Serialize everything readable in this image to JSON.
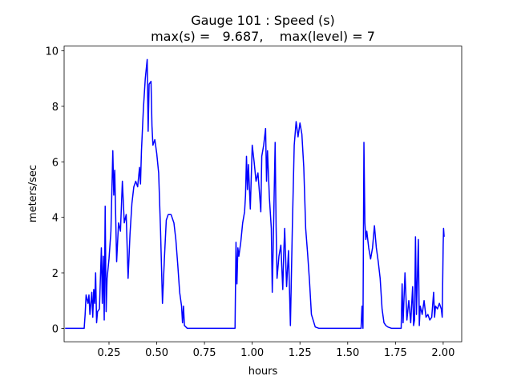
{
  "chart_data": {
    "type": "line",
    "title": "Gauge 101 : Speed (s)",
    "subtitle": "max(s) =   9.687,    max(level) = 7",
    "xlabel": "hours",
    "ylabel": "meters/sec",
    "xlim": [
      0.015,
      2.097
    ],
    "ylim": [
      -0.484,
      10.171
    ],
    "xticks": [
      0.25,
      {
        "value": 0.5,
        "label": "0.50"
      },
      0.75,
      {
        "value": 1,
        "label": "1.00"
      },
      1.25,
      {
        "value": 1.5,
        "label": "1.50"
      },
      1.75,
      {
        "value": 2,
        "label": "2.00"
      }
    ],
    "yticks": [
      0,
      2,
      4,
      6,
      8,
      10
    ],
    "series": [
      {
        "color": "#0000ff",
        "x": [
          0.02,
          0.12,
          0.125,
          0.13,
          0.14,
          0.145,
          0.15,
          0.16,
          0.165,
          0.17,
          0.175,
          0.18,
          0.185,
          0.19,
          0.2,
          0.21,
          0.215,
          0.22,
          0.225,
          0.23,
          0.235,
          0.24,
          0.25,
          0.26,
          0.27,
          0.275,
          0.28,
          0.29,
          0.3,
          0.31,
          0.32,
          0.33,
          0.34,
          0.35,
          0.36,
          0.37,
          0.38,
          0.39,
          0.4,
          0.41,
          0.415,
          0.42,
          0.43,
          0.44,
          0.45,
          0.455,
          0.46,
          0.47,
          0.475,
          0.48,
          0.49,
          0.5,
          0.51,
          0.52,
          0.53,
          0.54,
          0.55,
          0.56,
          0.575,
          0.59,
          0.6,
          0.61,
          0.62,
          0.63,
          0.635,
          0.64,
          0.645,
          0.66,
          0.91,
          0.915,
          0.92,
          0.925,
          0.93,
          0.94,
          0.95,
          0.96,
          0.965,
          0.97,
          0.975,
          0.98,
          0.99,
          1.0,
          1.01,
          1.02,
          1.03,
          1.04,
          1.045,
          1.05,
          1.06,
          1.07,
          1.075,
          1.08,
          1.09,
          1.1,
          1.105,
          1.11,
          1.12,
          1.125,
          1.13,
          1.14,
          1.15,
          1.16,
          1.165,
          1.17,
          1.18,
          1.19,
          1.2,
          1.21,
          1.22,
          1.23,
          1.24,
          1.25,
          1.26,
          1.27,
          1.28,
          1.29,
          1.3,
          1.31,
          1.33,
          1.35,
          1.57,
          1.575,
          1.58,
          1.585,
          1.59,
          1.595,
          1.6,
          1.61,
          1.62,
          1.63,
          1.64,
          1.65,
          1.66,
          1.67,
          1.68,
          1.69,
          1.7,
          1.71,
          1.73,
          1.78,
          1.785,
          1.79,
          1.8,
          1.81,
          1.82,
          1.83,
          1.84,
          1.845,
          1.85,
          1.855,
          1.86,
          1.87,
          1.875,
          1.88,
          1.89,
          1.9,
          1.91,
          1.92,
          1.93,
          1.94,
          1.95,
          1.955,
          1.96,
          1.97,
          1.98,
          1.99,
          1.995,
          2.0,
          2.002,
          2.005
        ],
        "values": [
          0,
          0,
          0.5,
          1.2,
          0.9,
          1.2,
          0.5,
          1.3,
          0.4,
          1.4,
          0.9,
          2.0,
          0.2,
          0.6,
          0.7,
          2.9,
          0.9,
          2.6,
          0.3,
          4.4,
          0.6,
          1.8,
          2.5,
          3.5,
          6.4,
          4.8,
          5.7,
          2.4,
          3.8,
          3.5,
          5.3,
          3.8,
          4.1,
          1.8,
          3.4,
          4.5,
          5.1,
          5.3,
          5.1,
          5.8,
          5.2,
          6.4,
          7.9,
          9.0,
          9.687,
          7.1,
          8.8,
          8.9,
          7.3,
          6.6,
          6.8,
          6.3,
          5.6,
          3.5,
          0.9,
          2.5,
          3.9,
          4.1,
          4.1,
          3.8,
          3.2,
          2.3,
          1.3,
          0.8,
          0.2,
          0.8,
          0.1,
          0,
          0,
          3.1,
          1.6,
          2.9,
          2.6,
          3.1,
          3.8,
          4.2,
          4.8,
          6.2,
          5.0,
          5.9,
          4.3,
          6.6,
          6.0,
          5.3,
          5.6,
          4.7,
          4.2,
          6.2,
          6.6,
          7.2,
          5.3,
          6.4,
          4.7,
          3.6,
          1.3,
          3.0,
          6.7,
          3.7,
          1.8,
          2.6,
          3.0,
          1.4,
          2.7,
          3.6,
          1.5,
          2.8,
          0.1,
          3.6,
          6.6,
          7.45,
          6.9,
          7.4,
          7.0,
          5.8,
          3.6,
          2.7,
          1.7,
          0.5,
          0.05,
          0,
          0,
          0.8,
          0,
          6.7,
          3.8,
          3.2,
          3.5,
          2.9,
          2.5,
          2.9,
          3.7,
          2.9,
          2.4,
          1.8,
          0.7,
          0.2,
          0.1,
          0.05,
          0,
          0,
          1.6,
          0.2,
          2.0,
          0.3,
          1.0,
          0.2,
          1.5,
          0.1,
          0.3,
          3.3,
          0.5,
          3.2,
          0.1,
          0.8,
          0.5,
          1.0,
          0.4,
          0.5,
          0.3,
          0.4,
          1.3,
          0.4,
          0.8,
          0.7,
          0.9,
          0.7,
          0.4,
          3.0,
          3.6,
          3.3
        ]
      }
    ]
  }
}
